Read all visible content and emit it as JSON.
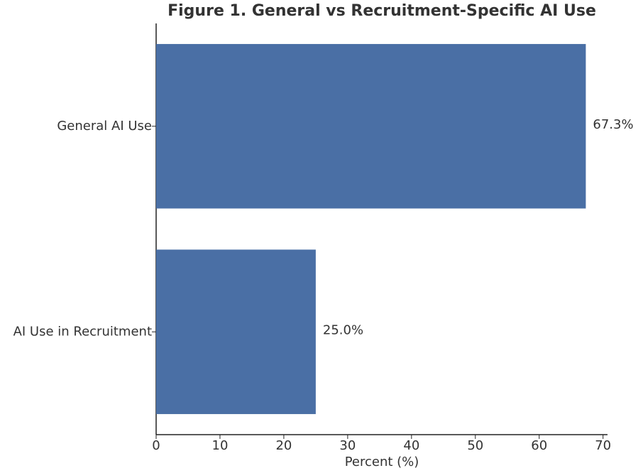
{
  "chart_data": {
    "type": "barh",
    "title": "Figure 1. General vs Recruitment-Specific AI Use",
    "xlabel": "Percent (%)",
    "categories": [
      "General AI Use",
      "AI Use in Recruitment"
    ],
    "values": [
      67.3,
      25.0
    ],
    "value_labels": [
      "67.3%",
      "25.0%"
    ],
    "color": "#4a6fa5",
    "xlim": [
      0,
      70.7
    ],
    "xticks": [
      0,
      10,
      20,
      30,
      40,
      50,
      60,
      70
    ],
    "grid": false
  }
}
